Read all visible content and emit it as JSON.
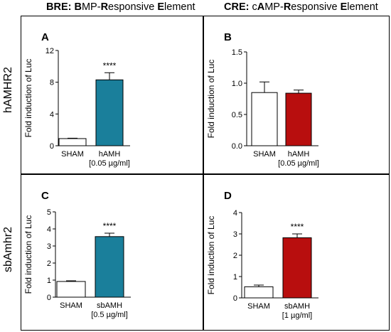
{
  "column_headers": [
    {
      "prefix": "BRE: ",
      "parts": [
        [
          "B",
          true
        ],
        [
          "MP-",
          false
        ],
        [
          "R",
          true
        ],
        [
          "esponsive ",
          false
        ],
        [
          "E",
          true
        ],
        [
          "lement",
          false
        ]
      ]
    },
    {
      "prefix": "CRE: ",
      "parts": [
        [
          "c",
          false
        ],
        [
          "A",
          true
        ],
        [
          "MP-",
          false
        ],
        [
          "R",
          true
        ],
        [
          "esponsive ",
          false
        ],
        [
          "E",
          true
        ],
        [
          "lement",
          false
        ]
      ]
    }
  ],
  "row_labels": [
    "hAMHR2",
    "sbAmhr2"
  ],
  "chart_data": [
    {
      "panel": "A",
      "type": "bar",
      "ylabel": "Fold induction of Luc",
      "ylim": [
        0,
        12
      ],
      "yticks": [
        0,
        4,
        8,
        12
      ],
      "categories": [
        [
          "SHAM"
        ],
        [
          "hAMH",
          "[0.05 µg/ml]"
        ]
      ],
      "values": [
        0.9,
        8.3
      ],
      "errors": [
        0.05,
        0.9
      ],
      "colors": [
        "#ffffff",
        "#1a7f9b"
      ],
      "significance": [
        "",
        "****"
      ]
    },
    {
      "panel": "B",
      "type": "bar",
      "ylabel": "Fold induction of Luc",
      "ylim": [
        0,
        1.5
      ],
      "yticks": [
        0.0,
        0.5,
        1.0,
        1.5
      ],
      "categories": [
        [
          "SHAM"
        ],
        [
          "hAMH",
          "[0.05 µg/ml]"
        ]
      ],
      "values": [
        0.85,
        0.84
      ],
      "errors": [
        0.17,
        0.05
      ],
      "colors": [
        "#ffffff",
        "#b80e0e"
      ],
      "significance": [
        "",
        ""
      ]
    },
    {
      "panel": "C",
      "type": "bar",
      "ylabel": "Fold induction of Luc",
      "ylim": [
        0,
        5
      ],
      "yticks": [
        0,
        1,
        2,
        3,
        4,
        5
      ],
      "categories": [
        [
          "SHAM"
        ],
        [
          "sbAMH",
          "[0.5 µg/ml]"
        ]
      ],
      "values": [
        0.92,
        3.55
      ],
      "errors": [
        0.04,
        0.2
      ],
      "colors": [
        "#ffffff",
        "#1a7f9b"
      ],
      "significance": [
        "",
        "****"
      ]
    },
    {
      "panel": "D",
      "type": "bar",
      "ylabel": "Fold induction of Luc",
      "ylim": [
        0,
        4
      ],
      "yticks": [
        0,
        1,
        2,
        3,
        4
      ],
      "categories": [
        [
          "SHAM"
        ],
        [
          "sbAMH",
          "[1 µg/ml]"
        ]
      ],
      "values": [
        0.52,
        2.82
      ],
      "errors": [
        0.08,
        0.18
      ],
      "colors": [
        "#ffffff",
        "#b80e0e"
      ],
      "significance": [
        "",
        "****"
      ]
    }
  ]
}
